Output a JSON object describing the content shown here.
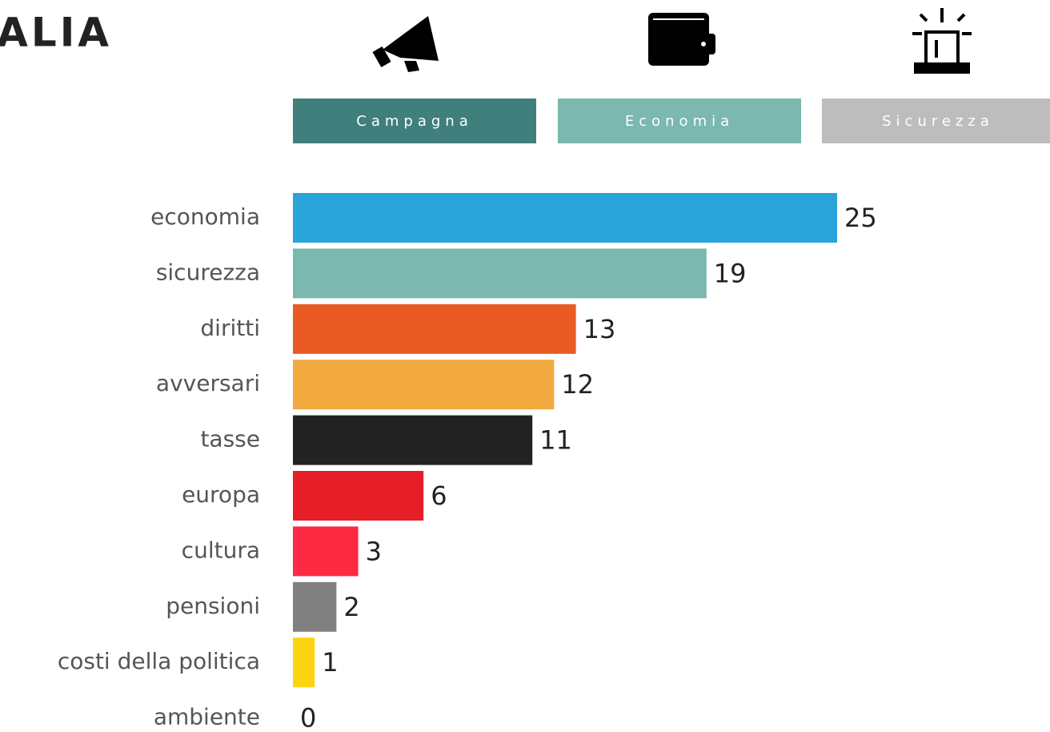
{
  "header": {
    "title": "ALIA"
  },
  "tabs": [
    "Campagna",
    "Economia",
    "Sicurezza"
  ],
  "chart_data": {
    "type": "hbar",
    "categories": [
      "economia",
      "sicurezza",
      "diritti",
      "avversari",
      "tasse",
      "europa",
      "cultura",
      "pensioni",
      "costi della politica",
      "ambiente"
    ],
    "values": [
      25,
      19,
      13,
      12,
      11,
      6,
      3,
      2,
      1,
      0
    ],
    "colors": [
      "#29a3da",
      "#7ab8b0",
      "#e95a25",
      "#f2a93f",
      "#222222",
      "#e61e28",
      "#fe2a43",
      "#808080",
      "#fdd412",
      "#7ab8b0"
    ]
  }
}
